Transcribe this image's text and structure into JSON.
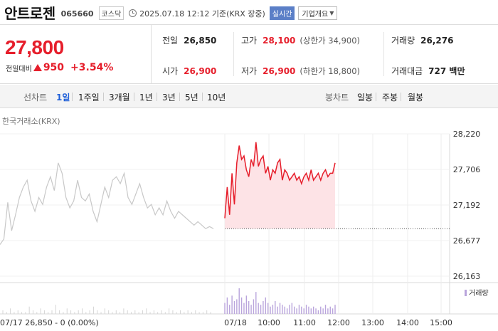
{
  "header": {
    "stock_name": "안트로젠",
    "stock_code": "065660",
    "market": "코스닥",
    "datetime": "2025.07.18 12:12 기준(KRX 장중)",
    "realtime_label": "실시간",
    "company_label": "기업개요"
  },
  "price": {
    "current": "27,800",
    "change_label": "전일대비",
    "change": "950",
    "change_pct": "+3.54%",
    "direction": "up"
  },
  "stats": {
    "prev_close_label": "전일",
    "prev_close": "26,850",
    "high_label": "고가",
    "high": "28,100",
    "upper_limit": "(상한가 34,900)",
    "volume_label": "거래량",
    "volume": "26,276",
    "open_label": "시가",
    "open": "26,900",
    "low_label": "저가",
    "low": "26,900",
    "lower_limit": "(하한가 18,800)",
    "amount_label": "거래대금",
    "amount": "727 백만"
  },
  "toolbar": {
    "line_chart_label": "선차트",
    "line_tabs": [
      "1일",
      "1주일",
      "3개월",
      "1년",
      "3년",
      "5년",
      "10년"
    ],
    "active_tab": "1일",
    "candle_label": "봉차트",
    "candle_tabs": [
      "일봉",
      "주봉",
      "월봉"
    ]
  },
  "chart": {
    "exchange_label": "한국거래소(KRX)",
    "volume_legend": "거래량",
    "footer_left": "07/17 26,850 - 0 (0.00%)",
    "colors": {
      "up": "#e61e2b",
      "prev": "#c8c8c8",
      "fill": "#fde3e6",
      "volume": "#b9a4dc"
    }
  },
  "chart_data": {
    "type": "line",
    "y_ticks": [
      "28,220",
      "27,706",
      "27,192",
      "26,677",
      "26,163"
    ],
    "ylim": [
      26163,
      28220
    ],
    "x_ticks": [
      "07/18",
      "10:00",
      "11:00",
      "12:00",
      "13:00",
      "14:00",
      "15:00"
    ],
    "baseline": 26850,
    "series": [
      {
        "name": "07/17",
        "values": [
          26620,
          26700,
          27230,
          26820,
          27050,
          27300,
          27450,
          27550,
          27250,
          27100,
          27300,
          27200,
          27450,
          27600,
          27400,
          27800,
          27650,
          27300,
          27150,
          27250,
          27550,
          27300,
          27250,
          27350,
          27100,
          26950,
          27200,
          27450,
          27300,
          27550,
          27600,
          27500,
          27650,
          27300,
          27200,
          27350,
          27500,
          27300,
          27150,
          27200,
          27050,
          27150,
          27050,
          27250,
          27100,
          27000,
          27100,
          27050,
          27000,
          26950,
          26900,
          26950,
          26900,
          26850,
          26880,
          26850
        ]
      },
      {
        "name": "07/18",
        "values": [
          27000,
          27450,
          27050,
          27650,
          27200,
          27800,
          28050,
          27850,
          27900,
          27700,
          27600,
          27850,
          27750,
          28100,
          27750,
          27850,
          27900,
          27650,
          27750,
          27550,
          27700,
          27650,
          27800,
          27850,
          27550,
          27700,
          27650,
          27550,
          27600,
          27650,
          27550,
          27600,
          27500,
          27600,
          27650,
          27550,
          27700,
          27550,
          27600,
          27650,
          27550,
          27650,
          27700,
          27600,
          27650,
          27650,
          27800
        ]
      }
    ],
    "volume_prev": [
      2,
      1,
      3,
      1,
      2,
      1,
      1,
      4,
      2,
      1,
      3,
      2,
      1,
      2,
      5,
      2,
      1,
      3,
      2,
      1,
      2,
      3,
      1,
      2,
      4,
      2,
      1,
      3,
      2,
      1,
      2,
      1,
      3,
      2,
      1,
      2,
      1,
      2,
      3,
      1,
      2,
      1,
      2,
      1,
      3,
      2,
      1,
      2,
      1,
      2,
      1,
      2,
      1,
      1,
      2,
      1
    ],
    "volume_today": [
      6,
      9,
      5,
      10,
      7,
      8,
      14,
      9,
      6,
      10,
      7,
      5,
      8,
      12,
      6,
      5,
      7,
      9,
      6,
      4,
      5,
      7,
      4,
      6,
      5,
      4,
      3,
      5,
      6,
      4,
      3,
      5,
      4,
      3,
      5,
      4,
      3,
      4,
      3,
      2,
      4,
      3,
      5,
      3,
      4,
      3,
      5
    ]
  }
}
